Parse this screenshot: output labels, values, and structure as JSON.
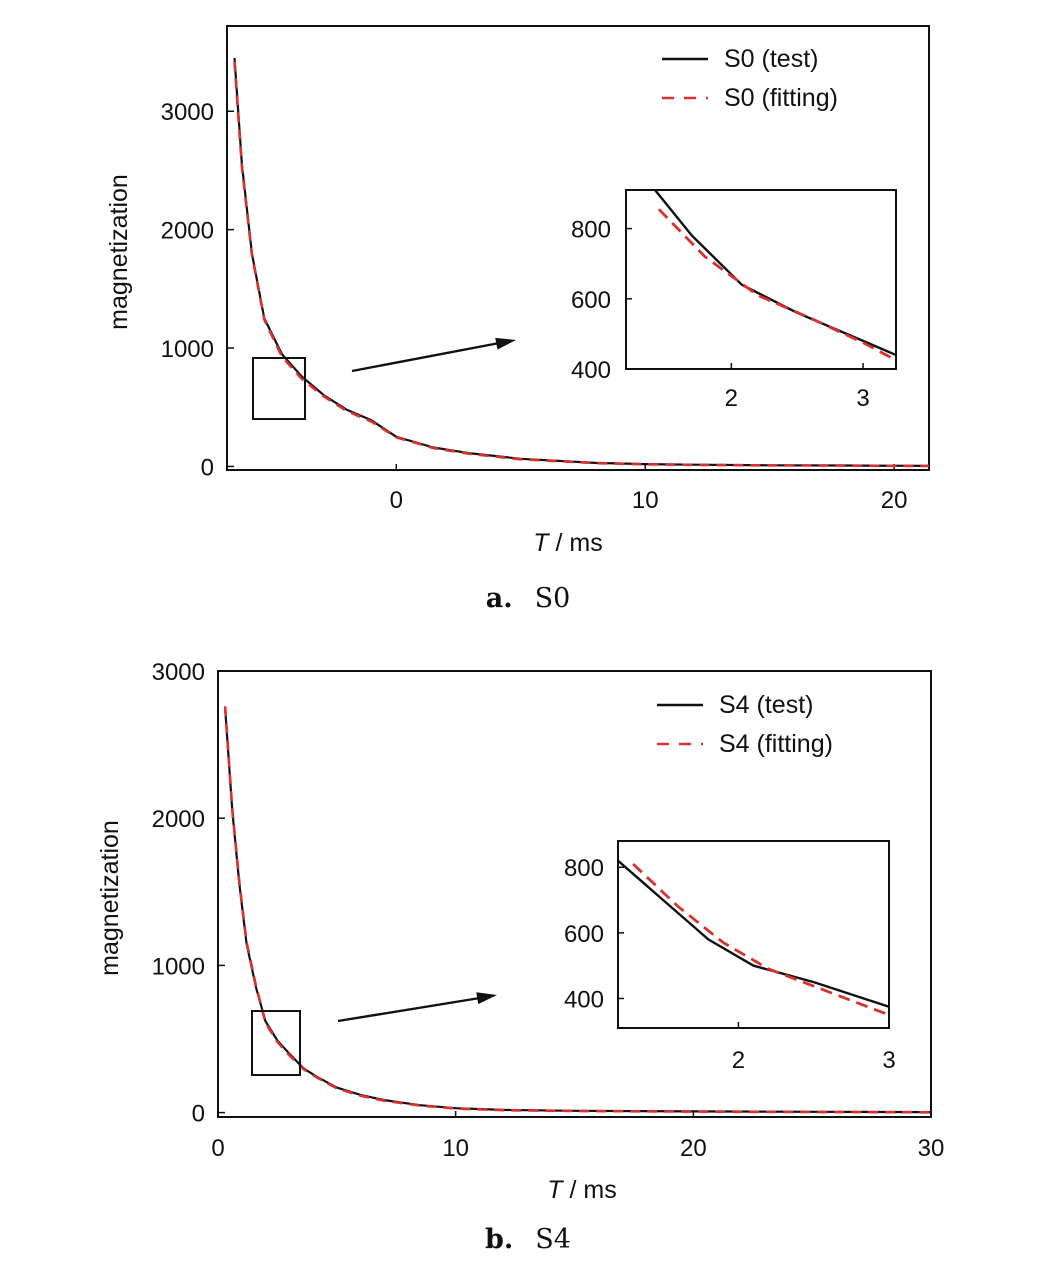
{
  "chart_data": [
    {
      "type": "line",
      "panel": "a",
      "caption_letter": "a.",
      "caption_text": "S0",
      "xlabel_italic": "T",
      "xlabel_rest": " / ms",
      "ylabel": "magnetization",
      "xlim": [
        -6.8,
        21.4
      ],
      "ylim": [
        -30,
        3720
      ],
      "xticks": [
        0,
        10,
        20
      ],
      "yticks": [
        0,
        1000,
        2000,
        3000
      ],
      "legend_position": "top-right",
      "series": [
        {
          "name": "S0 (test)",
          "style": "solid",
          "color": "#111111",
          "x": [
            -6.5,
            -6.2,
            -5.8,
            -5.3,
            -4.6,
            -3.8,
            -2.9,
            -2.0,
            -1.0,
            0.0,
            1.5,
            3.0,
            5.0,
            8.0,
            10.0,
            12.0,
            15.0,
            18.0,
            21.4
          ],
          "y": [
            3450,
            2550,
            1800,
            1250,
            950,
            760,
            600,
            480,
            390,
            250,
            160,
            110,
            65,
            30,
            20,
            15,
            10,
            8,
            5
          ]
        },
        {
          "name": "S0 (fitting)",
          "style": "dashed",
          "color": "#d93030",
          "x": [
            -6.5,
            -6.2,
            -5.8,
            -5.3,
            -4.6,
            -3.8,
            -2.9,
            -2.0,
            -1.0,
            0.0,
            1.5,
            3.0,
            5.0,
            8.0,
            10.0,
            12.0,
            15.0,
            18.0,
            21.4
          ],
          "y": [
            3420,
            2530,
            1790,
            1240,
            930,
            740,
            590,
            470,
            380,
            245,
            155,
            105,
            60,
            28,
            18,
            13,
            9,
            7,
            4
          ]
        }
      ],
      "inset": {
        "xlim": [
          1.2,
          3.25
        ],
        "ylim": [
          400,
          910
        ],
        "xticks": [
          2,
          3
        ],
        "yticks": [
          400,
          600,
          800
        ],
        "series": [
          {
            "name": "S0 (test)",
            "x": [
              1.42,
              1.7,
              2.08,
              2.5,
              3.0,
              3.25
            ],
            "y": [
              910,
              780,
              640,
              560,
              480,
              440
            ]
          },
          {
            "name": "S0 (fitting)",
            "x": [
              1.45,
              1.8,
              2.2,
              2.6,
              3.0,
              3.25
            ],
            "y": [
              855,
              720,
              610,
              545,
              475,
              425
            ]
          }
        ]
      }
    },
    {
      "type": "line",
      "panel": "b",
      "caption_letter": "b.",
      "caption_text": "S4",
      "xlabel_italic": "T",
      "xlabel_rest": " / ms",
      "ylabel": "magnetization",
      "xlim": [
        0,
        30
      ],
      "ylim": [
        -30,
        3000
      ],
      "xticks": [
        0,
        10,
        20,
        30
      ],
      "yticks": [
        0,
        1000,
        2000,
        3000
      ],
      "legend_position": "top-right",
      "series": [
        {
          "name": "S4 (test)",
          "style": "solid",
          "color": "#111111",
          "x": [
            0.3,
            0.6,
            0.9,
            1.2,
            1.6,
            2.0,
            2.5,
            3.0,
            3.6,
            4.2,
            5.0,
            6.0,
            7.0,
            8.5,
            10.0,
            12.0,
            15.0,
            20.0,
            25.0,
            30.0
          ],
          "y": [
            2750,
            2050,
            1550,
            1150,
            850,
            620,
            490,
            400,
            300,
            240,
            170,
            120,
            85,
            50,
            30,
            18,
            12,
            8,
            5,
            3
          ]
        },
        {
          "name": "S4 (fitting)",
          "style": "dashed",
          "color": "#d93030",
          "x": [
            0.3,
            0.6,
            0.9,
            1.2,
            1.6,
            2.0,
            2.5,
            3.0,
            3.6,
            4.2,
            5.0,
            6.0,
            7.0,
            8.5,
            10.0,
            12.0,
            15.0,
            20.0,
            25.0,
            30.0
          ],
          "y": [
            2760,
            2060,
            1560,
            1160,
            860,
            610,
            480,
            390,
            295,
            235,
            165,
            115,
            80,
            48,
            28,
            16,
            11,
            7,
            4,
            2
          ]
        }
      ],
      "inset": {
        "xlim": [
          1.2,
          3.0
        ],
        "ylim": [
          310,
          880
        ],
        "xticks": [
          2,
          3
        ],
        "yticks": [
          400,
          600,
          800
        ],
        "series": [
          {
            "name": "S4 (test)",
            "x": [
              1.2,
              1.5,
              1.8,
              2.1,
              2.5,
              3.0
            ],
            "y": [
              820,
              700,
              580,
              500,
              450,
              375
            ]
          },
          {
            "name": "S4 (fitting)",
            "x": [
              1.3,
              1.6,
              1.9,
              2.2,
              2.6,
              3.0
            ],
            "y": [
              810,
              680,
              570,
              490,
              420,
              350
            ]
          }
        ]
      }
    }
  ]
}
